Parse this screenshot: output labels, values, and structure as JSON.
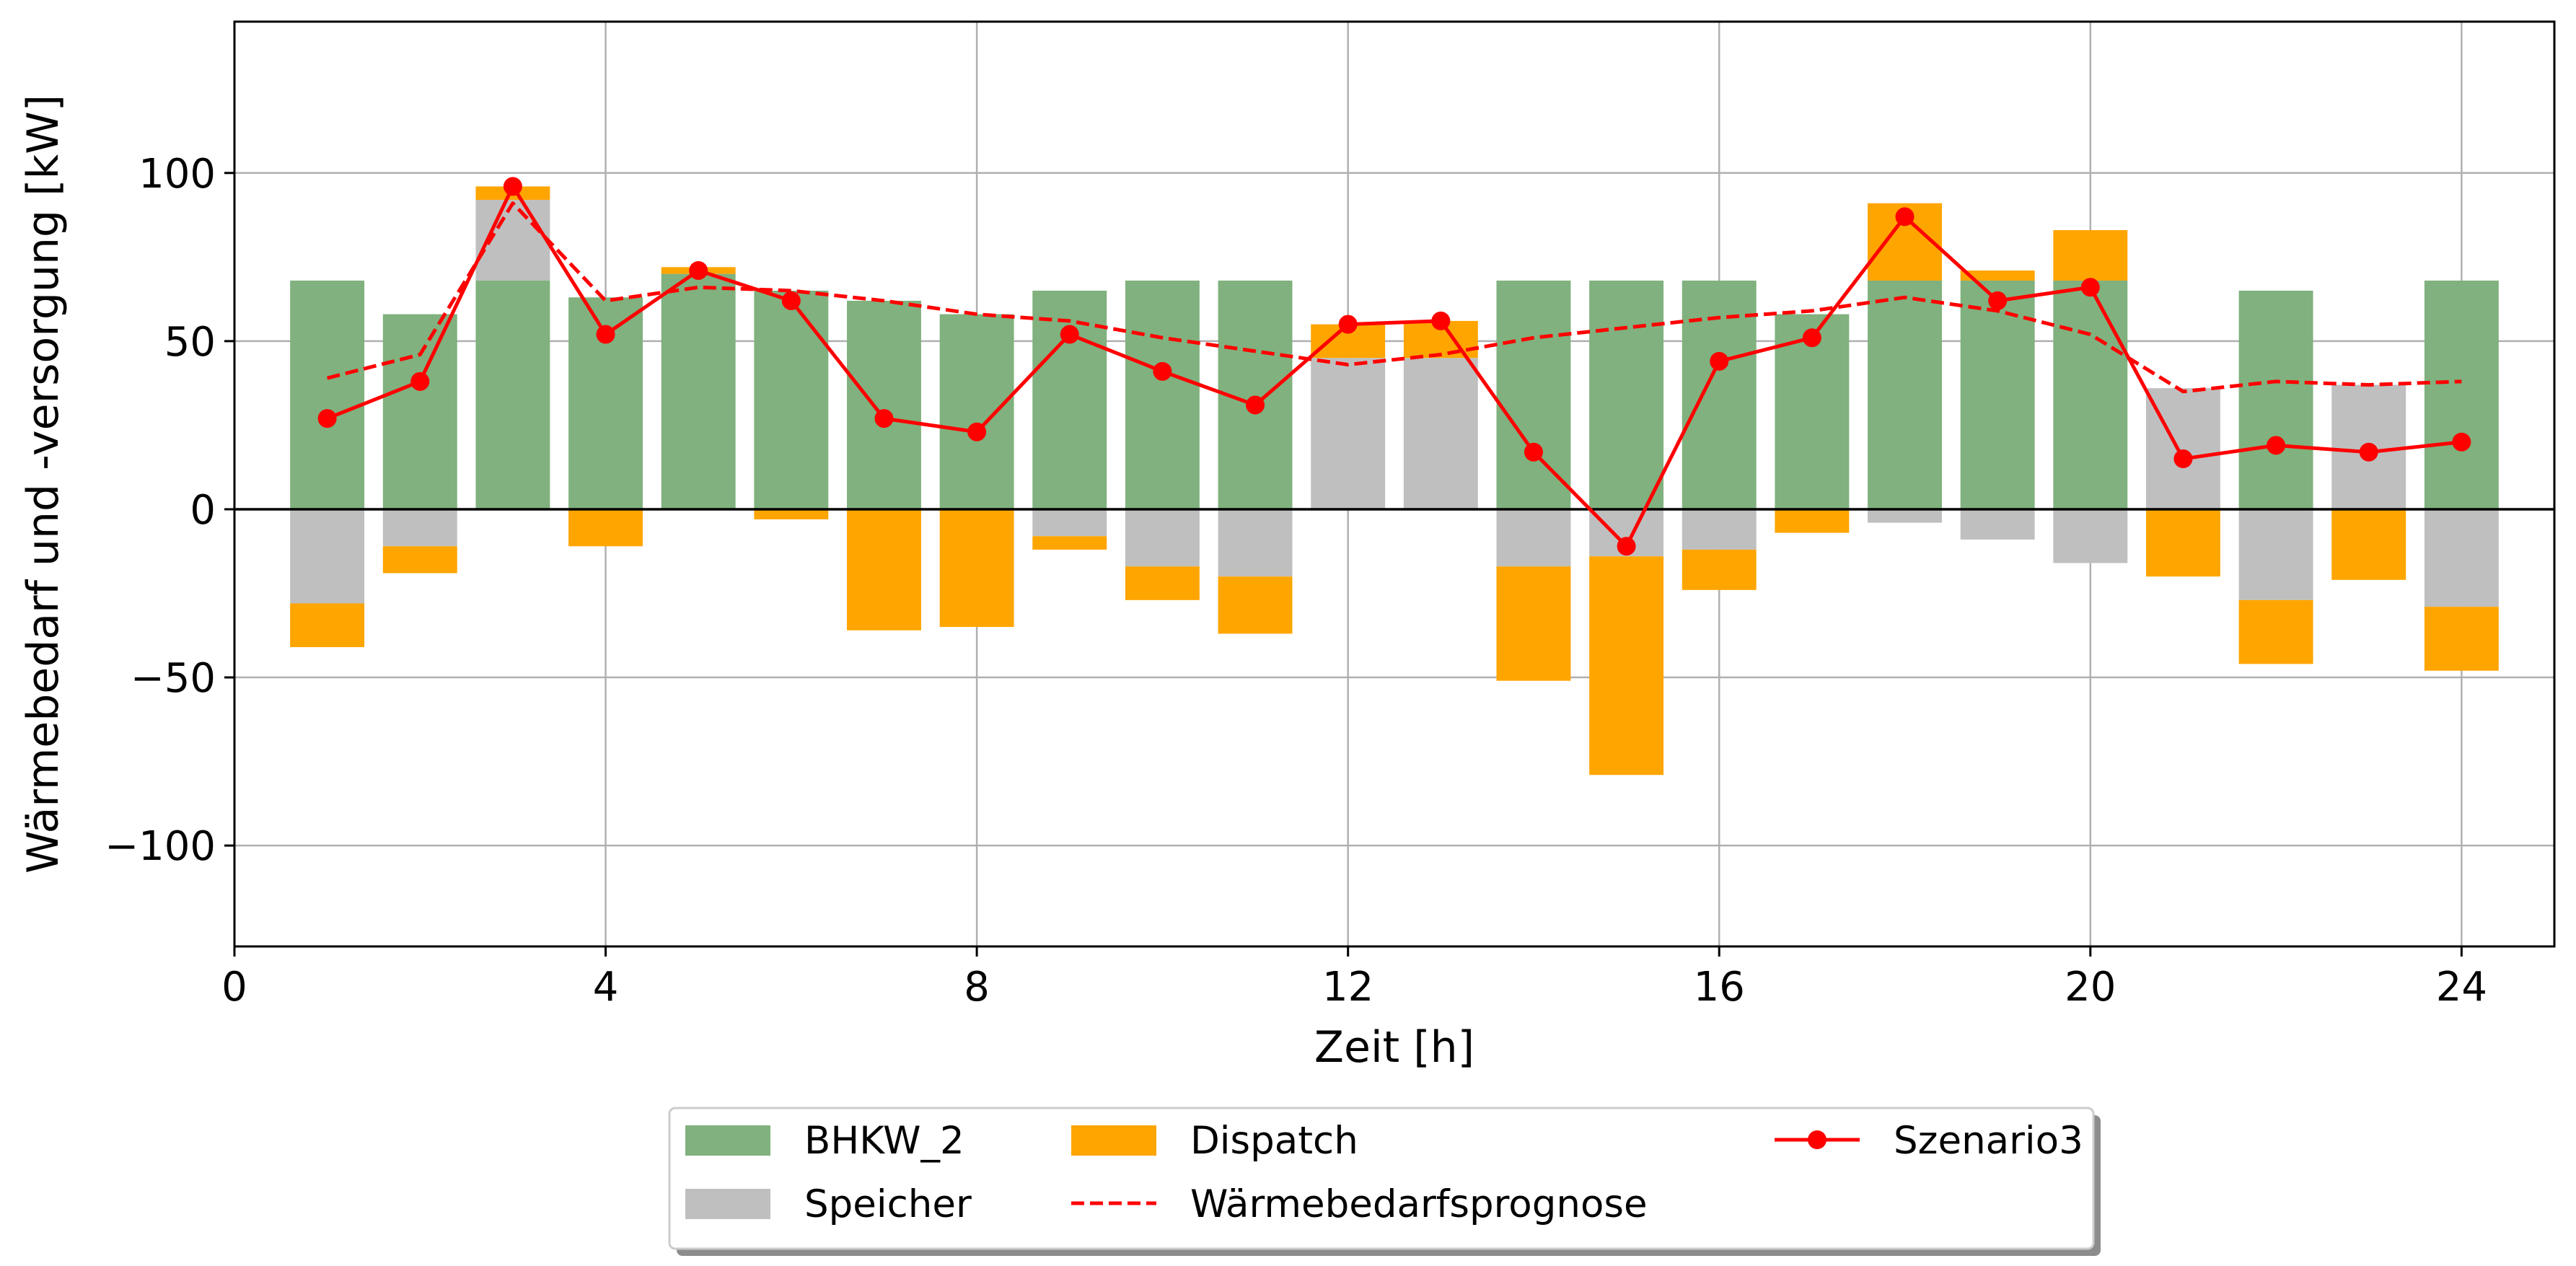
{
  "chart_data": {
    "type": "bar",
    "stacking": "positive and negative stacks around zero",
    "xlabel": "Zeit [h]",
    "ylabel": "Wärmebedarf und -versorgung [kW]",
    "xlim": [
      0,
      25
    ],
    "ylim": [
      -130,
      145
    ],
    "xticks": [
      0,
      4,
      8,
      12,
      16,
      20,
      24
    ],
    "yticks": [
      -100,
      -50,
      0,
      50,
      100
    ],
    "ytick_labels": [
      "−100",
      "−50",
      "0",
      "50",
      "100"
    ],
    "grid": true,
    "zero_line": true,
    "legend_position": "below plot, center",
    "x": [
      1,
      2,
      3,
      4,
      5,
      6,
      7,
      8,
      9,
      10,
      11,
      12,
      13,
      14,
      15,
      16,
      17,
      18,
      19,
      20,
      21,
      22,
      23,
      24
    ],
    "bar_series": [
      {
        "name": "BHKW_2",
        "color": "#80b17e",
        "values": [
          68,
          58,
          68,
          63,
          70,
          65,
          62,
          58,
          65,
          68,
          68,
          0,
          0,
          68,
          68,
          68,
          58,
          68,
          68,
          68,
          0,
          65,
          0,
          68
        ]
      },
      {
        "name": "Speicher",
        "color": "#bfbfbf",
        "values": [
          -28,
          -11,
          24,
          0,
          0,
          0,
          0,
          0,
          -8,
          -17,
          -20,
          45,
          45,
          -17,
          -14,
          -12,
          0,
          -4,
          -9,
          -16,
          36,
          -27,
          37,
          -29
        ]
      },
      {
        "name": "Dispatch",
        "color": "#ffa500",
        "values": [
          -13,
          -8,
          4,
          -11,
          2,
          -3,
          -36,
          -35,
          -4,
          -10,
          -17,
          10,
          11,
          -34,
          -65,
          -12,
          -7,
          23,
          3,
          15,
          -20,
          -19,
          -21,
          -19
        ]
      }
    ],
    "line_series": [
      {
        "name": "Wärmebedarfsprognose",
        "color": "#ff0000",
        "style": "dashed",
        "values": [
          39,
          46,
          91,
          62,
          66,
          65,
          62,
          58,
          56,
          51,
          47,
          43,
          46,
          51,
          54,
          57,
          59,
          63,
          59,
          52,
          35,
          38,
          37,
          38
        ]
      },
      {
        "name": "Szenario3",
        "color": "#ff0000",
        "style": "solid",
        "marker": "circle",
        "values": [
          27,
          38,
          96,
          52,
          71,
          62,
          27,
          23,
          52,
          41,
          31,
          55,
          56,
          17,
          -11,
          44,
          51,
          87,
          62,
          66,
          15,
          19,
          17,
          20
        ]
      }
    ],
    "legend": [
      {
        "label": "BHKW_2",
        "kind": "patch",
        "color": "#80b17e"
      },
      {
        "label": "Speicher",
        "kind": "patch",
        "color": "#bfbfbf"
      },
      {
        "label": "Dispatch",
        "kind": "patch",
        "color": "#ffa500"
      },
      {
        "label": "Wärmebedarfsprognose",
        "kind": "dashed-line",
        "color": "#ff0000"
      },
      {
        "label": "Szenario3",
        "kind": "line-marker",
        "color": "#ff0000"
      }
    ]
  }
}
